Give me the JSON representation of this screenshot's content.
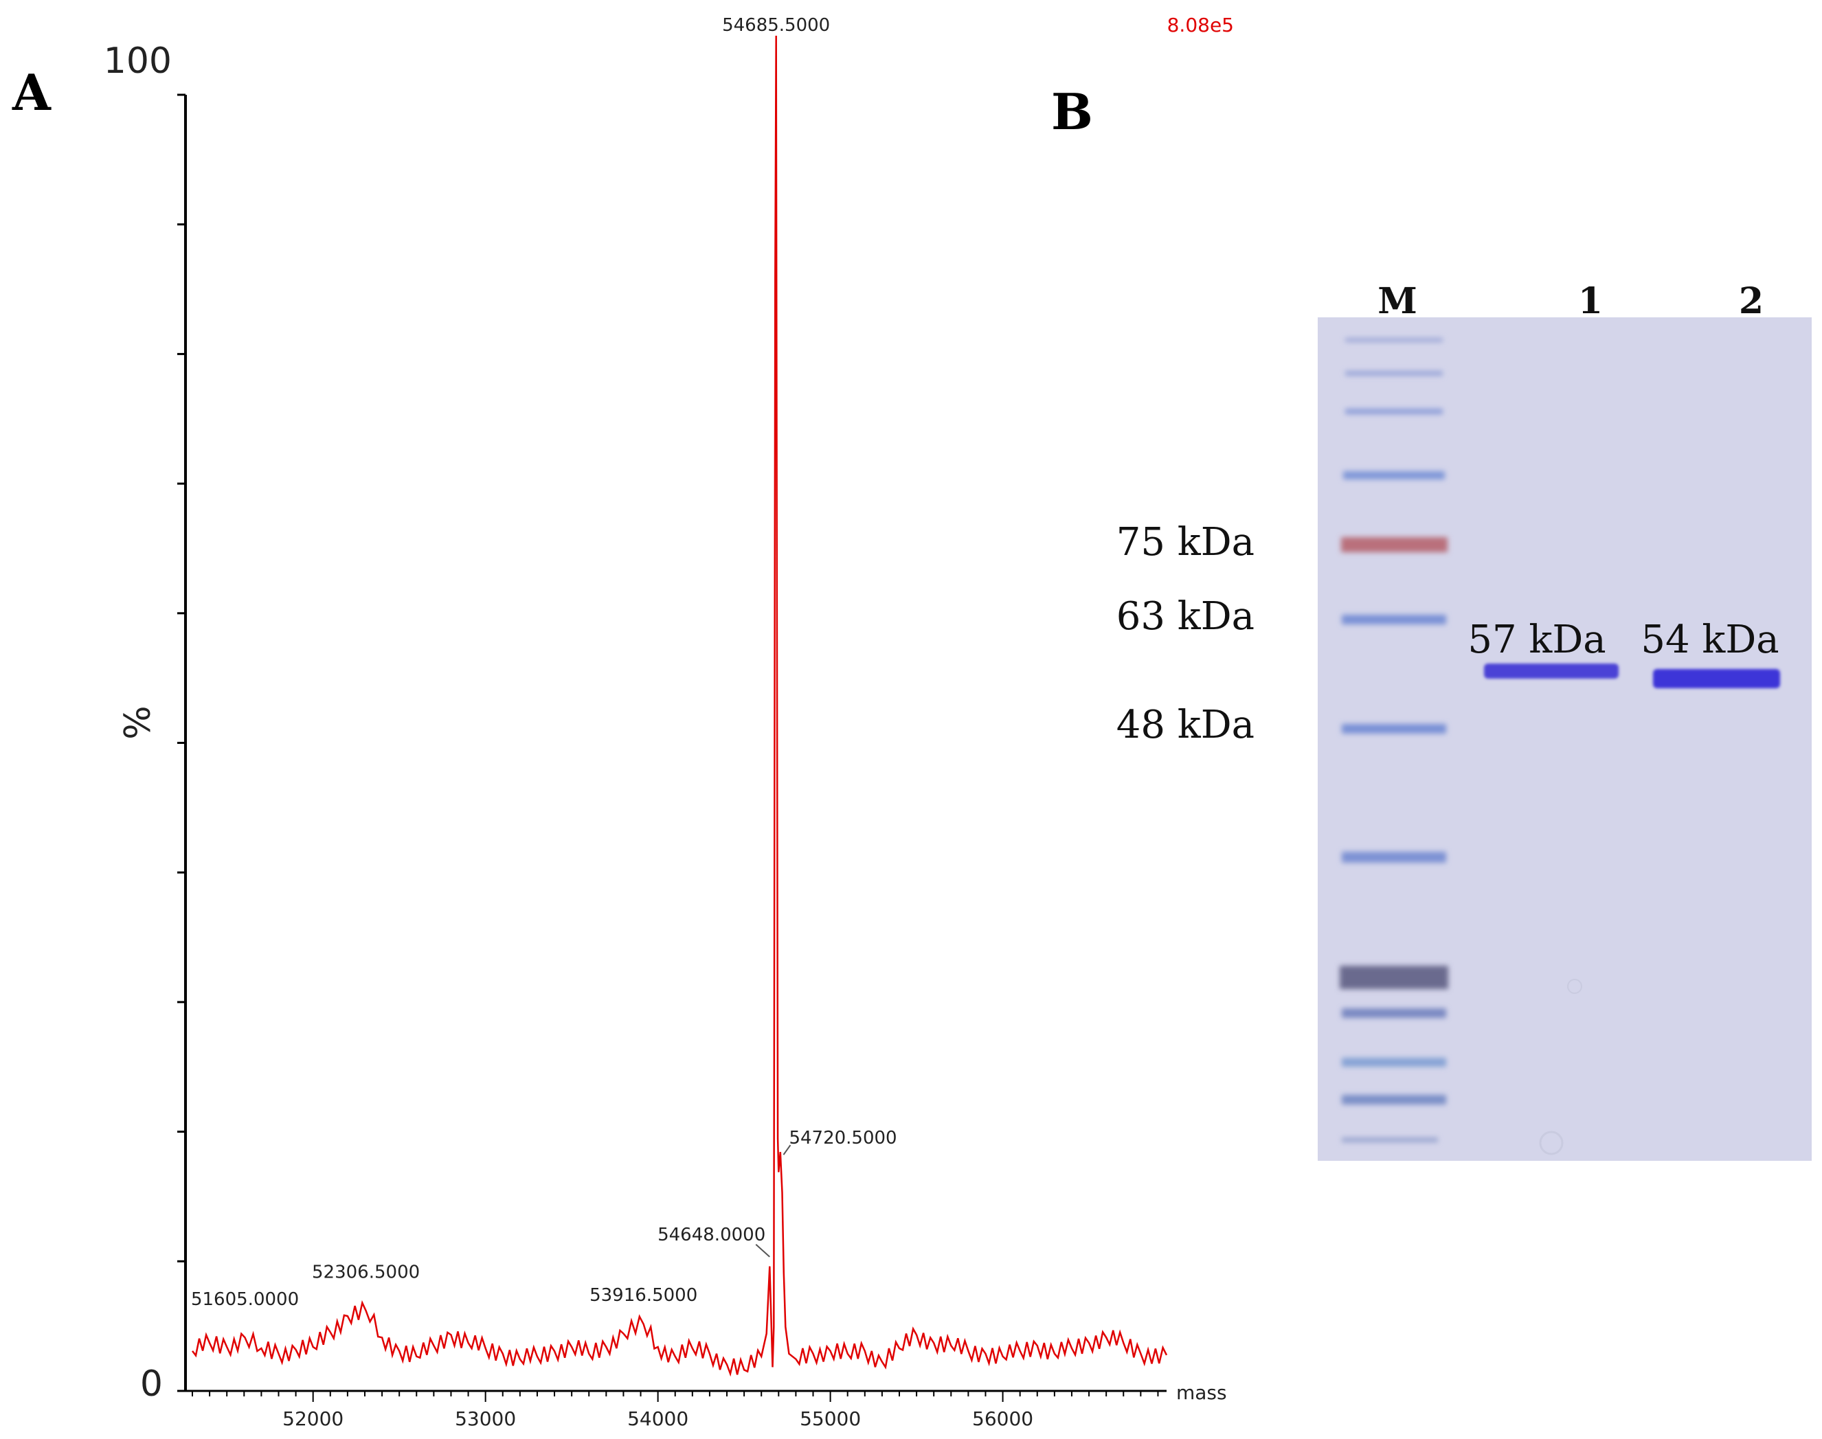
{
  "panel_a": {
    "letter": "A"
  },
  "panel_b": {
    "letter": "B"
  },
  "chart_data": {
    "type": "line",
    "ylabel": "%",
    "xlabel": "mass",
    "ylim": [
      0,
      100
    ],
    "xlim": [
      51300,
      56950
    ],
    "y_tick_labels": [
      "0",
      "100"
    ],
    "x_ticks": [
      52000,
      53000,
      54000,
      55000,
      56000
    ],
    "scale_label": "8.08e5",
    "color": "#e00000",
    "peak_labels": [
      {
        "x": 51605,
        "y": 4.5,
        "text": "51605.0000"
      },
      {
        "x": 52306.5,
        "y": 6.5,
        "text": "52306.5000"
      },
      {
        "x": 53916.5,
        "y": 4.8,
        "text": "53916.5000"
      },
      {
        "x": 54648,
        "y": 9,
        "text": "54648.0000"
      },
      {
        "x": 54720.5,
        "y": 17,
        "text": "54720.5000"
      },
      {
        "x": 54685.5,
        "y": 100,
        "text": "54685.5000"
      }
    ],
    "series": [
      {
        "x": [
          51300,
          51400,
          51500,
          51605,
          51700,
          51800,
          51900,
          52000,
          52100,
          52200,
          52306.5,
          52400,
          52500,
          52600,
          52700,
          52800,
          52900,
          53000,
          53100,
          53200,
          53300,
          53400,
          53500,
          53600,
          53700,
          53800,
          53916.5,
          54000,
          54100,
          54200,
          54300,
          54400,
          54500,
          54600,
          54630,
          54648,
          54665,
          54672,
          54680,
          54685.5,
          54690,
          54695,
          54700,
          54710,
          54720.5,
          54730,
          54740,
          54760,
          54800,
          54900,
          55000,
          55100,
          55200,
          55300,
          55400,
          55500,
          55600,
          55700,
          55800,
          55900,
          56000,
          56100,
          56200,
          56300,
          56400,
          56500,
          56600,
          56700,
          56800,
          56950
        ],
        "y": [
          2.2,
          2.8,
          2.5,
          3.2,
          2.4,
          2.0,
          2.3,
          2.5,
          3.6,
          4.8,
          5.2,
          3.2,
          2.2,
          1.8,
          2.6,
          3.4,
          2.8,
          2.4,
          2.0,
          1.6,
          1.8,
          2.2,
          2.5,
          2.0,
          2.5,
          3.5,
          4.2,
          2.5,
          1.8,
          2.4,
          2.0,
          1.2,
          0.8,
          1.8,
          3.5,
          8.5,
          1.0,
          4.0,
          82.0,
          100,
          60.0,
          18.0,
          15.5,
          17.0,
          14.0,
          8.0,
          4.0,
          2.0,
          1.6,
          2.0,
          2.2,
          2.0,
          2.2,
          1.4,
          2.4,
          3.4,
          2.8,
          2.6,
          2.2,
          2.0,
          1.8,
          2.2,
          2.6,
          2.0,
          2.4,
          2.8,
          3.2,
          2.8,
          2.0,
          1.9
        ]
      }
    ]
  },
  "gel": {
    "lane_labels": [
      "M",
      "1",
      "2"
    ],
    "marker_labels": [
      "75 kDa",
      "63 kDa",
      "48 kDa"
    ],
    "band_labels": [
      "57 kDa",
      "54 kDa"
    ]
  }
}
